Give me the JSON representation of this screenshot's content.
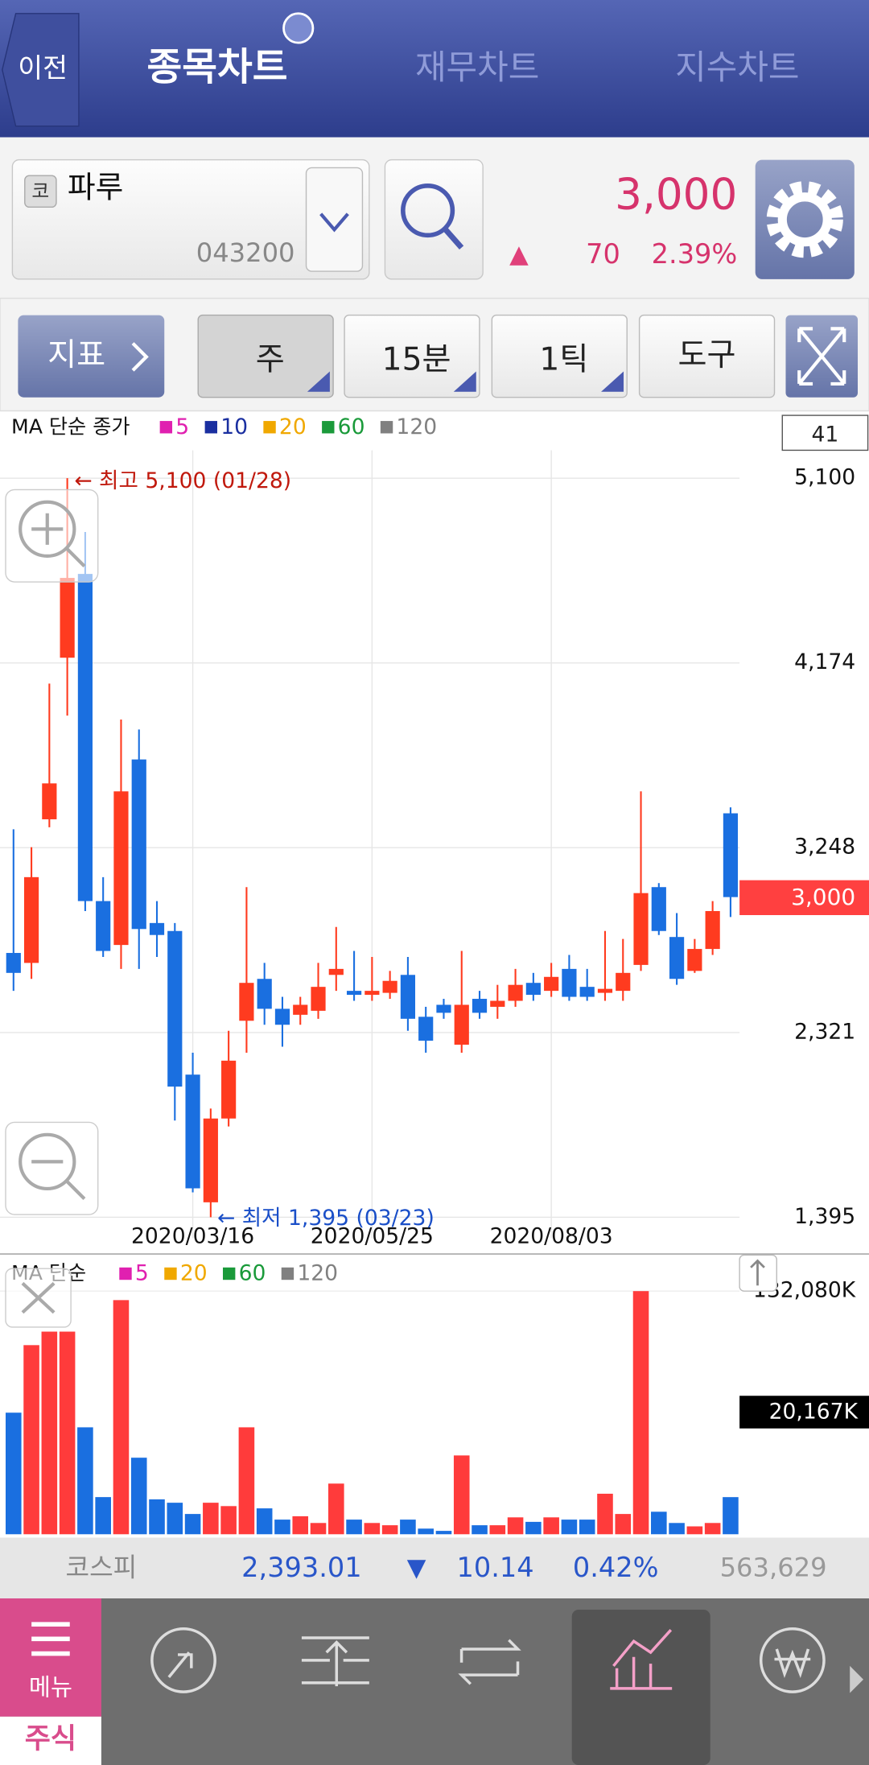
{
  "header": {
    "back": "이전",
    "tabs": [
      "종목차트",
      "재무차트",
      "지수차트"
    ]
  },
  "stock": {
    "market_badge": "코",
    "name": "파루",
    "code": "043200",
    "price": "3,000",
    "change_sign": "▲",
    "change": "70",
    "change_rate": "2.39%"
  },
  "toolbar": {
    "indicator": "지표",
    "period": "주",
    "minutes": "15분",
    "tick": "1틱",
    "tools": "도구"
  },
  "chart_data": [
    {
      "type": "candlestick",
      "legend_title": "MA 단순 종가",
      "ma_legend": [
        "5",
        "10",
        "20",
        "60",
        "120"
      ],
      "ma_colors": [
        "#e020b0",
        "#1a2fa0",
        "#f0a800",
        "#1a9a3a",
        "#808080"
      ],
      "visible_count": 41,
      "up_color": "#ff3b1f",
      "down_color": "#1a6fe0",
      "categories": [
        null,
        null,
        null,
        null,
        null,
        null,
        null,
        null,
        null,
        null,
        "2020/03/16",
        null,
        null,
        null,
        null,
        null,
        null,
        null,
        null,
        null,
        "2020/05/25",
        null,
        null,
        null,
        null,
        null,
        null,
        null,
        null,
        null,
        "2020/08/03",
        null,
        null,
        null,
        null,
        null,
        null,
        null,
        null,
        null,
        null
      ],
      "open": [
        2720,
        2670,
        3390,
        4200,
        4620,
        2980,
        2760,
        3690,
        2870,
        2830,
        2110,
        1470,
        1890,
        2380,
        2590,
        2440,
        2410,
        2430,
        2610,
        2530,
        2510,
        2520,
        2610,
        2400,
        2460,
        2260,
        2490,
        2450,
        2480,
        2570,
        2530,
        2640,
        2550,
        2520,
        2530,
        2660,
        3050,
        2800,
        2630,
        2740,
        3420
      ],
      "high": [
        3340,
        3250,
        4070,
        5100,
        4830,
        3100,
        3890,
        3840,
        2980,
        2870,
        2220,
        1940,
        2330,
        3050,
        2670,
        2500,
        2500,
        2670,
        2850,
        2730,
        2700,
        2630,
        2700,
        2450,
        2490,
        2730,
        2530,
        2560,
        2640,
        2620,
        2670,
        2710,
        2640,
        2830,
        2790,
        3530,
        3070,
        2920,
        2790,
        2980,
        3450
      ],
      "low": [
        2530,
        2590,
        3350,
        3910,
        2930,
        2700,
        2640,
        2640,
        2700,
        1880,
        1520,
        1395,
        1850,
        2220,
        2360,
        2250,
        2360,
        2390,
        2530,
        2480,
        2480,
        2490,
        2330,
        2220,
        2390,
        2220,
        2390,
        2390,
        2450,
        2480,
        2500,
        2480,
        2480,
        2480,
        2480,
        2630,
        2810,
        2560,
        2620,
        2710,
        2900
      ],
      "close": [
        2620,
        3100,
        3570,
        4600,
        2980,
        2730,
        3530,
        2840,
        2810,
        2050,
        1540,
        1890,
        2180,
        2570,
        2440,
        2360,
        2460,
        2550,
        2640,
        2510,
        2530,
        2580,
        2390,
        2280,
        2420,
        2460,
        2420,
        2480,
        2560,
        2510,
        2600,
        2500,
        2500,
        2540,
        2620,
        3020,
        2830,
        2590,
        2740,
        2930,
        3000
      ],
      "ylim": [
        1290,
        5240
      ],
      "yticks": [
        {
          "value": 5100,
          "label": "5,100"
        },
        {
          "value": 4174,
          "label": "4,174"
        },
        {
          "value": 3248,
          "label": "3,248"
        },
        {
          "value": 2321,
          "label": "2,321"
        },
        {
          "value": 1395,
          "label": "1,395"
        }
      ],
      "annotations": [
        "← 최고 5,100 (01/28)",
        "← 최저 1,395 (03/23)"
      ],
      "current_price": {
        "value": 3000,
        "label": "3,000"
      }
    },
    {
      "type": "bar",
      "legend_title": "MA 단순",
      "ma_legend": [
        "5",
        "20",
        "60",
        "120"
      ],
      "ma_colors": [
        "#e020b0",
        "#f0a800",
        "#1a9a3a",
        "#808080"
      ],
      "values": [
        66040,
        102730,
        110070,
        110070,
        58090,
        20180,
        127190,
        41580,
        18960,
        17120,
        11010,
        17120,
        15290,
        58090,
        14060,
        7950,
        9780,
        6120,
        27520,
        7950,
        6120,
        4890,
        7950,
        3060,
        1830,
        42810,
        4890,
        4890,
        9170,
        6730,
        9170,
        7950,
        7950,
        22010,
        11010,
        132080,
        12230,
        6120,
        4280,
        6120,
        20167
      ],
      "ylim": [
        0,
        132080
      ],
      "yticks": [
        {
          "value": 132080,
          "label": "132,080K"
        }
      ],
      "current": {
        "value": 20167,
        "label": "20,167K"
      }
    }
  ],
  "index_bar": {
    "name": "코스피",
    "value": "2,393.01",
    "sign": "▼",
    "change": "10.14",
    "rate": "0.42%",
    "volume": "563,629"
  },
  "nav": {
    "menu": "메뉴",
    "section": "주식",
    "items": [
      "관심종목",
      "현재가",
      "주문",
      "차트",
      "계좌"
    ]
  }
}
